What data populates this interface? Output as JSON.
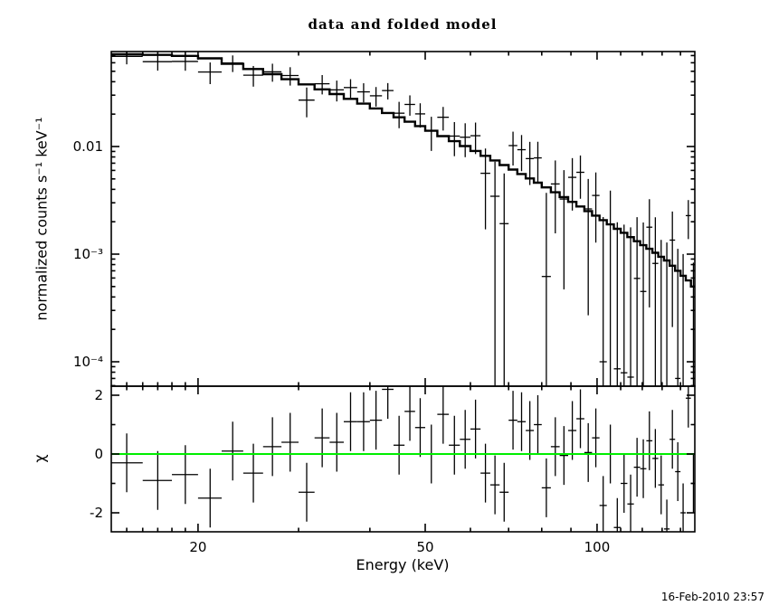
{
  "title": "data and folded model",
  "timestamp": "16-Feb-2010 23:57",
  "colors": {
    "foreground": "#000000",
    "background": "#ffffff",
    "zero_line": "#00ee00"
  },
  "chart_data": [
    {
      "type": "line",
      "id": "spectrum",
      "description": "Counts spectrum with stepped folded model and data crosses, log-log axes",
      "ylabel": "normalized counts s⁻¹ keV⁻¹",
      "x_axis": {
        "scale": "log",
        "range_kev": [
          14.1,
          148.3
        ],
        "major_ticks": [
          {
            "v": 20,
            "label": "20"
          },
          {
            "v": 50,
            "label": "50"
          },
          {
            "v": 100,
            "label": "100"
          }
        ],
        "minor_ticks": [
          15,
          16,
          17,
          18,
          19,
          30,
          40,
          60,
          70,
          80,
          90,
          110,
          120,
          130,
          140
        ]
      },
      "y_axis": {
        "scale": "log",
        "range": [
          5.9e-05,
          0.0763
        ],
        "major_ticks": [
          {
            "v": 0.01,
            "label": "0.01"
          },
          {
            "v": 0.001,
            "label": "10⁻³"
          },
          {
            "v": 0.0001,
            "label": "10⁻⁴"
          }
        ]
      },
      "bins": {
        "energy_kev": [
          15,
          17,
          19,
          21,
          23,
          25,
          27,
          29,
          31,
          33,
          35,
          37,
          39,
          41,
          43,
          45,
          47,
          49,
          51.25,
          53.75,
          56.25,
          58.75,
          61.25,
          63.75,
          66.25,
          68.75,
          71.25,
          73.75,
          76.25,
          78.75,
          81.5,
          84.5,
          87.5,
          90.5,
          93.5,
          96.5,
          99.5,
          102.5,
          105.5,
          108.5,
          111.5,
          114.5,
          117.5,
          120.5,
          123.5,
          126.5,
          129.5,
          132.5,
          135.5,
          138.5,
          141.5,
          144.5,
          147.5
        ],
        "width_kev": [
          2,
          2,
          2,
          2,
          2,
          2,
          2,
          2,
          2,
          2,
          2,
          2,
          2,
          2,
          2,
          2,
          2,
          2,
          2.5,
          2.5,
          2.5,
          2.5,
          2.5,
          2.5,
          2.5,
          2.5,
          2.5,
          2.5,
          2.5,
          2.5,
          3,
          3,
          3,
          3,
          3,
          3,
          3,
          3,
          3,
          3,
          3,
          3,
          3,
          3,
          3,
          3,
          3,
          3,
          3,
          3,
          3,
          3,
          3
        ],
        "model": [
          0.072,
          0.071,
          0.0695,
          0.066,
          0.0586,
          0.0525,
          0.047,
          0.0422,
          0.0378,
          0.034,
          0.0307,
          0.0277,
          0.025,
          0.0226,
          0.0205,
          0.0187,
          0.017,
          0.0155,
          0.014,
          0.0125,
          0.0112,
          0.0101,
          0.00909,
          0.0082,
          0.00742,
          0.00672,
          0.0061,
          0.00555,
          0.00505,
          0.00461,
          0.00417,
          0.00376,
          0.00339,
          0.00306,
          0.00277,
          0.00251,
          0.00228,
          0.00207,
          0.00189,
          0.00172,
          0.00158,
          0.00144,
          0.00132,
          0.00121,
          0.00112,
          0.00103,
          0.000946,
          0.000873,
          0.00078,
          0.0007,
          0.00063,
          0.00057,
          0.0005
        ],
        "rate": [
          0.0688,
          0.0614,
          0.0617,
          0.0492,
          0.0597,
          0.046,
          0.0494,
          0.0457,
          0.027,
          0.0383,
          0.0336,
          0.0353,
          0.0322,
          0.0296,
          0.0331,
          0.0204,
          0.0246,
          0.0201,
          0.014,
          0.0187,
          0.0125,
          0.0122,
          0.0126,
          0.00564,
          0.00345,
          0.00192,
          0.0102,
          0.00934,
          0.00772,
          0.00784,
          0.00062,
          0.00449,
          0.00325,
          0.00517,
          0.00576,
          0.00263,
          0.00351,
          0.0001,
          0.00189,
          8.6e-05,
          7.9e-05,
          7.2e-05,
          0.000595,
          0.00045,
          0.00178,
          0.00082,
          4.7e-05,
          4.4e-05,
          0.00135,
          7e-05,
          3.2e-05,
          0.00228,
          2.5e-05
        ],
        "rate_err": [
          0.0108,
          0.0107,
          0.0111,
          0.0112,
          0.0105,
          0.01,
          0.0094,
          0.00886,
          0.00832,
          0.00782,
          0.00737,
          0.00693,
          0.0065,
          0.0061,
          0.00574,
          0.00561,
          0.00527,
          0.00512,
          0.0049,
          0.00463,
          0.00437,
          0.00424,
          0.00409,
          0.00394,
          0.00378,
          0.0037,
          0.00354,
          0.00344,
          0.00333,
          0.00323,
          0.00309,
          0.00293,
          0.00278,
          0.00263,
          0.00249,
          0.00236,
          0.00223,
          0.00211,
          0.002,
          0.00189,
          0.0018,
          0.0017,
          0.00161,
          0.00152,
          0.00146,
          0.00138,
          0.00131,
          0.00124,
          0.00114,
          0.00105,
          0.00097,
          0.0009,
          0.00081
        ]
      }
    },
    {
      "type": "residual",
      "id": "chi",
      "ylabel": "χ",
      "y_axis": {
        "scale": "linear",
        "range": [
          -2.65,
          2.31
        ],
        "major_ticks": [
          {
            "v": 2,
            "label": "2"
          },
          {
            "v": 0,
            "label": "0"
          },
          {
            "v": -2,
            "label": "-2"
          }
        ],
        "minor_ticks": [
          -1,
          1
        ]
      },
      "chi": [
        -0.3,
        -0.9,
        -0.7,
        -1.5,
        0.1,
        -0.65,
        0.25,
        0.4,
        -1.3,
        0.55,
        0.4,
        1.1,
        1.1,
        1.15,
        2.2,
        0.3,
        1.45,
        0.9,
        0.0,
        1.35,
        0.3,
        0.5,
        0.85,
        -0.65,
        -1.05,
        -1.3,
        1.15,
        1.1,
        0.8,
        1.0,
        -1.15,
        0.25,
        -0.05,
        0.8,
        1.2,
        0.05,
        0.55,
        -1.75,
        0.0,
        -2.5,
        -1.0,
        -1.7,
        -0.45,
        -0.5,
        0.45,
        -0.15,
        -1.05,
        -2.55,
        0.5,
        -0.6,
        -2.0,
        1.9,
        -1.0
      ],
      "chi_err": 1,
      "zero_line": 0
    }
  ],
  "x_label": "Energy (keV)"
}
